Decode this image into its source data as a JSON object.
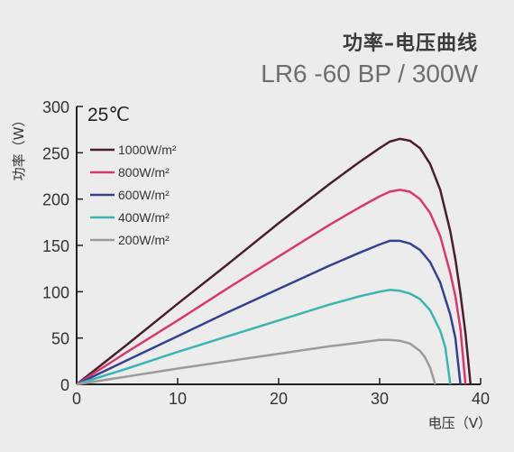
{
  "chart_data": {
    "type": "line",
    "title": "功率–电压曲线",
    "subtitle": "LR6 -60 BP / 300W",
    "annotation": "25℃",
    "xlabel": "电压（V）",
    "ylabel": "功率（W）",
    "xlim": [
      0,
      40
    ],
    "ylim": [
      0,
      300
    ],
    "xticks": [
      0,
      10,
      20,
      30,
      40
    ],
    "yticks": [
      0,
      50,
      100,
      150,
      200,
      250,
      300
    ],
    "grid": false,
    "legend_position": "top-left",
    "series": [
      {
        "name": "1000W/m²",
        "color": "#4a1f2c",
        "x": [
          0,
          5,
          10,
          15,
          20,
          25,
          28,
          30,
          31,
          32,
          33,
          34,
          35,
          36,
          37,
          37.5,
          38,
          38.5,
          39
        ],
        "y": [
          0,
          43,
          87,
          130,
          174,
          216,
          240,
          255,
          262,
          265,
          263,
          255,
          238,
          210,
          165,
          135,
          98,
          55,
          0
        ]
      },
      {
        "name": "800W/m²",
        "color": "#d8396b",
        "x": [
          0,
          5,
          10,
          15,
          20,
          25,
          28,
          30,
          31,
          32,
          33,
          34,
          35,
          36,
          37,
          37.5,
          38,
          38.5
        ],
        "y": [
          0,
          35,
          69,
          104,
          138,
          172,
          191,
          203,
          208,
          210,
          208,
          200,
          185,
          160,
          120,
          95,
          60,
          0
        ]
      },
      {
        "name": "600W/m²",
        "color": "#35418f",
        "x": [
          0,
          5,
          10,
          15,
          20,
          25,
          28,
          30,
          31,
          32,
          33,
          34,
          35,
          36,
          37,
          37.5,
          38
        ],
        "y": [
          0,
          26,
          52,
          78,
          103,
          128,
          142,
          151,
          155,
          155,
          152,
          145,
          132,
          110,
          75,
          50,
          0
        ]
      },
      {
        "name": "400W/m²",
        "color": "#3bb5b2",
        "x": [
          0,
          5,
          10,
          15,
          20,
          25,
          28,
          30,
          31,
          32,
          33,
          34,
          35,
          36,
          36.5,
          37
        ],
        "y": [
          0,
          17,
          35,
          52,
          69,
          86,
          95,
          100,
          102,
          101,
          98,
          92,
          80,
          58,
          40,
          0
        ]
      },
      {
        "name": "200W/m²",
        "color": "#9b9b9b",
        "x": [
          0,
          5,
          10,
          15,
          20,
          25,
          28,
          30,
          31,
          32,
          33,
          34,
          34.5,
          35,
          35.5
        ],
        "y": [
          0,
          8.5,
          17,
          25,
          33,
          41,
          45,
          48,
          48,
          47,
          44,
          36,
          29,
          18,
          0
        ]
      }
    ]
  }
}
